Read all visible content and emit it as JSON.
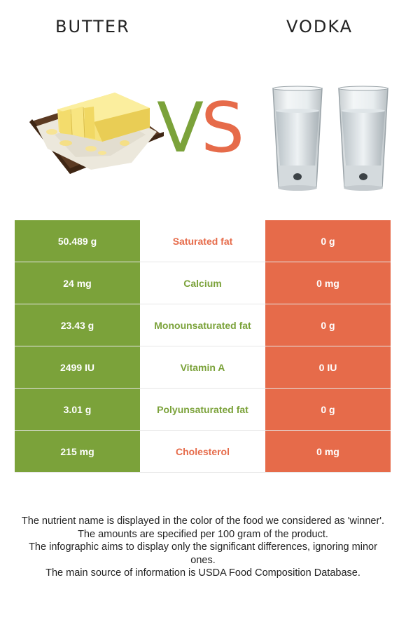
{
  "header": {
    "left_food": "BUTTER",
    "right_food": "VODKA",
    "vs_v": "V",
    "vs_s": "S"
  },
  "colors": {
    "left_food": "#7ba23a",
    "right_food": "#e66b4a"
  },
  "rows": [
    {
      "left": "50.489 g",
      "nutrient": "Saturated fat",
      "right": "0 g",
      "winner": "right"
    },
    {
      "left": "24 mg",
      "nutrient": "Calcium",
      "right": "0 mg",
      "winner": "left"
    },
    {
      "left": "23.43 g",
      "nutrient": "Monounsaturated fat",
      "right": "0 g",
      "winner": "left"
    },
    {
      "left": "2499 IU",
      "nutrient": "Vitamin A",
      "right": "0 IU",
      "winner": "left"
    },
    {
      "left": "3.01 g",
      "nutrient": "Polyunsaturated fat",
      "right": "0 g",
      "winner": "left"
    },
    {
      "left": "215 mg",
      "nutrient": "Cholesterol",
      "right": "0 mg",
      "winner": "right"
    }
  ],
  "footer": {
    "line1": "The nutrient name is displayed in the color of the food we considered as 'winner'.",
    "line2": "The amounts are specified per 100 gram of the product.",
    "line3": "The infographic aims to display only the significant differences, ignoring minor ones.",
    "line4": "The main source of information is USDA Food Composition Database."
  }
}
